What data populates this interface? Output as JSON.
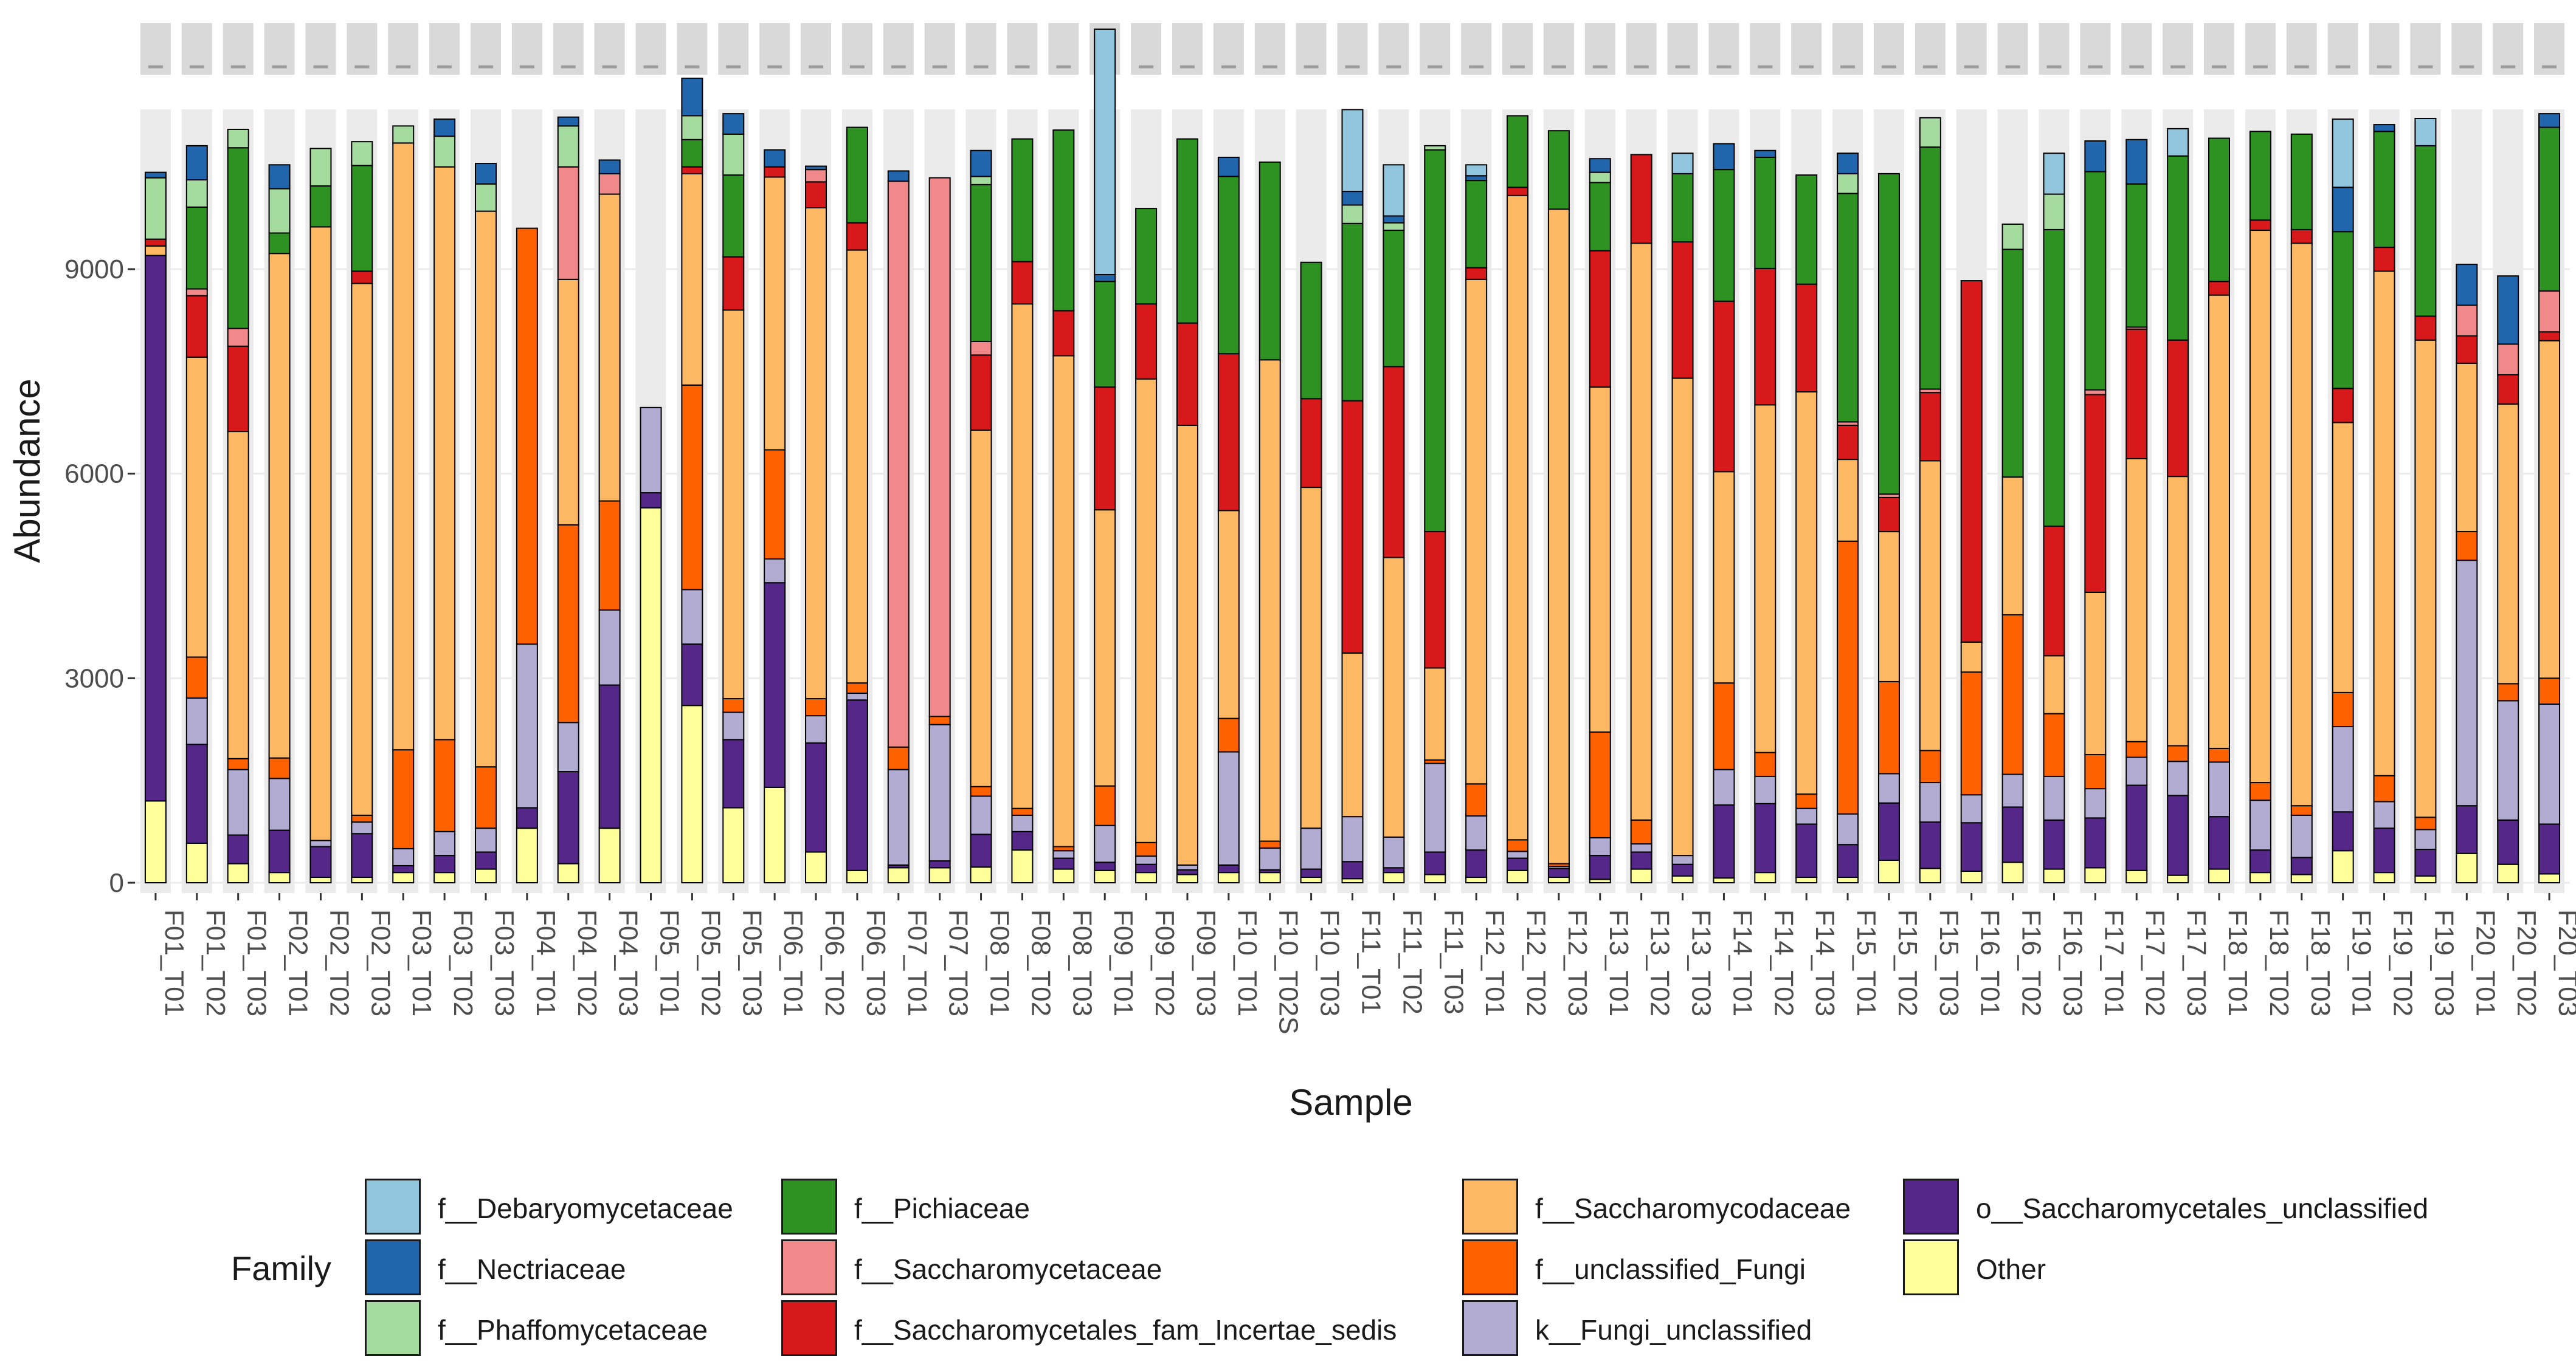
{
  "chart_data": {
    "type": "bar",
    "stacked": true,
    "xlabel": "Sample",
    "ylabel": "Abundance",
    "ylim": [
      0,
      11300
    ],
    "yticks": [
      0,
      3000,
      6000,
      9000
    ],
    "grid": true,
    "legend_title": "Family",
    "legend_position": "bottom",
    "categories": [
      "F01_T01",
      "F01_T02",
      "F01_T03",
      "F02_T01",
      "F02_T02",
      "F02_T03",
      "F03_T01",
      "F03_T02",
      "F03_T03",
      "F04_T01",
      "F04_T02",
      "F04_T03",
      "F05_T01",
      "F05_T02",
      "F05_T03",
      "F06_T01",
      "F06_T02",
      "F06_T03",
      "F07_T01",
      "F07_T03",
      "F08_T01",
      "F08_T02",
      "F08_T03",
      "F09_T01",
      "F09_T02",
      "F09_T03",
      "F10_T01",
      "F10_T02S",
      "F10_T03",
      "F11_T01",
      "F11_T02",
      "F11_T03",
      "F12_T01",
      "F12_T02",
      "F12_T03",
      "F13_T01",
      "F13_T02",
      "F13_T03",
      "F14_T01",
      "F14_T02",
      "F14_T03",
      "F15_T01",
      "F15_T02",
      "F15_T03",
      "F16_T01",
      "F16_T02",
      "F16_T03",
      "F17_T01",
      "F17_T02",
      "F17_T03",
      "F18_T01",
      "F18_T02",
      "F18_T03",
      "F19_T01",
      "F19_T02",
      "F19_T03",
      "F20_T01",
      "F20_T02",
      "F20_T03"
    ],
    "series": [
      {
        "name": "Other",
        "color": "#ffff99",
        "values": [
          1200,
          580,
          280,
          150,
          80,
          80,
          150,
          150,
          200,
          800,
          280,
          800,
          5500,
          2600,
          1100,
          1400,
          450,
          180,
          220,
          220,
          230,
          480,
          200,
          180,
          150,
          120,
          150,
          150,
          80,
          60,
          150,
          120,
          80,
          180,
          80,
          50,
          200,
          100,
          70,
          150,
          80,
          80,
          330,
          210,
          170,
          300,
          200,
          220,
          180,
          110,
          200,
          150,
          120,
          470,
          150,
          100,
          430,
          270,
          130
        ]
      },
      {
        "name": "o__Saccharomycetales_unclassified",
        "color": "#542788",
        "values": [
          8000,
          1450,
          420,
          620,
          450,
          640,
          100,
          250,
          250,
          300,
          1350,
          2100,
          220,
          900,
          1000,
          3000,
          1600,
          2500,
          40,
          100,
          480,
          270,
          160,
          120,
          120,
          70,
          110,
          40,
          120,
          250,
          70,
          330,
          400,
          180,
          130,
          350,
          250,
          170,
          1070,
          1010,
          780,
          480,
          840,
          680,
          710,
          810,
          720,
          730,
          1250,
          1170,
          770,
          330,
          250,
          570,
          650,
          390,
          700,
          650,
          730
        ]
      },
      {
        "name": "k__Fungi_unclassified",
        "color": "#b2abd2",
        "values": [
          0,
          680,
          960,
          760,
          90,
          170,
          250,
          350,
          350,
          2400,
          720,
          1100,
          1250,
          800,
          400,
          350,
          400,
          100,
          1400,
          2000,
          560,
          240,
          110,
          540,
          120,
          70,
          1660,
          320,
          600,
          660,
          450,
          1300,
          500,
          100,
          30,
          260,
          120,
          130,
          520,
          400,
          230,
          450,
          430,
          580,
          410,
          480,
          640,
          430,
          410,
          500,
          800,
          730,
          620,
          1250,
          390,
          290,
          3600,
          1750,
          1760
        ]
      },
      {
        "name": "f__unclassified_Fungi",
        "color": "#fe6100",
        "values": [
          0,
          600,
          160,
          300,
          0,
          100,
          1450,
          1350,
          900,
          6100,
          2900,
          1600,
          0,
          3000,
          200,
          1600,
          250,
          150,
          330,
          120,
          140,
          100,
          60,
          580,
          200,
          0,
          490,
          100,
          0,
          0,
          0,
          50,
          470,
          170,
          40,
          1550,
          350,
          0,
          1270,
          350,
          210,
          4000,
          1350,
          470,
          1800,
          2340,
          920,
          500,
          230,
          230,
          200,
          260,
          140,
          500,
          380,
          180,
          420,
          250,
          380
        ]
      },
      {
        "name": "f__Saccharomycodaceae",
        "color": "#fdb863",
        "values": [
          140,
          4400,
          4800,
          7400,
          9000,
          7800,
          8900,
          8400,
          8150,
          0,
          3600,
          4500,
          0,
          3100,
          5700,
          4000,
          7200,
          6350,
          0,
          0,
          5230,
          7400,
          7200,
          4050,
          6800,
          6450,
          3050,
          7060,
          5000,
          2400,
          4100,
          1350,
          7400,
          9450,
          9600,
          5060,
          8460,
          7000,
          3100,
          5100,
          5900,
          1200,
          2200,
          4250,
          440,
          2020,
          850,
          2380,
          4150,
          3950,
          6650,
          8100,
          8250,
          3960,
          7400,
          7000,
          2470,
          4100,
          4950
        ]
      },
      {
        "name": "f__Saccharomycetales_fam_Incertae_sedis",
        "color": "#d7191c",
        "values": [
          100,
          900,
          1250,
          0,
          0,
          180,
          0,
          0,
          0,
          0,
          0,
          0,
          0,
          100,
          780,
          150,
          380,
          400,
          0,
          0,
          1100,
          620,
          660,
          1800,
          1100,
          1500,
          2300,
          0,
          1300,
          3700,
          2800,
          2000,
          170,
          120,
          0,
          2000,
          1300,
          2000,
          2500,
          2000,
          1580,
          500,
          500,
          1000,
          5300,
          0,
          1900,
          2900,
          1900,
          2000,
          200,
          150,
          200,
          500,
          350,
          350,
          400,
          430,
          130
        ]
      },
      {
        "name": "f__Saccharomycetaceae",
        "color": "#f1898a",
        "values": [
          0,
          100,
          260,
          0,
          0,
          0,
          0,
          0,
          0,
          0,
          1650,
          300,
          0,
          0,
          0,
          0,
          180,
          0,
          8300,
          7900,
          200,
          0,
          0,
          0,
          0,
          0,
          0,
          0,
          0,
          0,
          0,
          0,
          0,
          0,
          0,
          0,
          0,
          0,
          0,
          0,
          0,
          50,
          50,
          50,
          0,
          0,
          0,
          70,
          30,
          0,
          0,
          0,
          0,
          0,
          0,
          0,
          450,
          450,
          600
        ]
      },
      {
        "name": "f__Pichiaceae",
        "color": "#2d9221",
        "values": [
          0,
          1200,
          2650,
          300,
          600,
          1550,
          0,
          0,
          0,
          0,
          0,
          0,
          0,
          400,
          1200,
          0,
          0,
          1400,
          0,
          0,
          2300,
          1800,
          2650,
          1550,
          1400,
          2700,
          2600,
          2900,
          2000,
          2600,
          2000,
          5600,
          1280,
          1050,
          1150,
          1000,
          0,
          1000,
          1930,
          1630,
          1600,
          3350,
          4700,
          3550,
          0,
          3340,
          4350,
          3200,
          2100,
          2700,
          2100,
          1300,
          1400,
          2300,
          1700,
          2500,
          0,
          0,
          2400
        ]
      },
      {
        "name": "f__Phaffomycetaceae",
        "color": "#a6dba0",
        "values": [
          900,
          400,
          270,
          650,
          550,
          350,
          250,
          450,
          400,
          0,
          600,
          0,
          0,
          350,
          600,
          0,
          0,
          0,
          0,
          0,
          120,
          0,
          0,
          0,
          0,
          0,
          0,
          0,
          0,
          270,
          110,
          60,
          0,
          0,
          0,
          150,
          0,
          0,
          0,
          0,
          0,
          290,
          0,
          430,
          0,
          370,
          520,
          0,
          0,
          0,
          0,
          0,
          0,
          0,
          0,
          0,
          0,
          0,
          0
        ]
      },
      {
        "name": "f__Nectriaceae",
        "color": "#2166ac",
        "values": [
          80,
          500,
          0,
          350,
          0,
          0,
          0,
          250,
          300,
          0,
          130,
          200,
          0,
          550,
          300,
          250,
          50,
          0,
          150,
          0,
          380,
          0,
          0,
          100,
          0,
          0,
          280,
          0,
          0,
          200,
          100,
          0,
          70,
          0,
          0,
          200,
          0,
          0,
          380,
          100,
          0,
          300,
          0,
          0,
          0,
          0,
          0,
          450,
          650,
          0,
          0,
          0,
          0,
          650,
          100,
          0,
          600,
          1000,
          200
        ]
      },
      {
        "name": "f__Debaryomycetaceae",
        "color": "#92c5de",
        "values": [
          0,
          0,
          0,
          0,
          0,
          0,
          0,
          0,
          0,
          0,
          0,
          0,
          0,
          0,
          0,
          0,
          0,
          0,
          0,
          0,
          0,
          0,
          0,
          3600,
          0,
          0,
          0,
          0,
          0,
          1200,
          750,
          0,
          160,
          0,
          0,
          0,
          0,
          300,
          0,
          0,
          0,
          0,
          0,
          0,
          0,
          0,
          600,
          0,
          0,
          400,
          0,
          0,
          0,
          1000,
          0,
          400,
          0,
          0,
          0
        ]
      }
    ]
  },
  "legend": {
    "title": "Family",
    "items": [
      {
        "label": "f__Debaryomycetaceae",
        "color": "#92c5de"
      },
      {
        "label": "f__Nectriaceae",
        "color": "#2166ac"
      },
      {
        "label": "f__Phaffomycetaceae",
        "color": "#a6dba0"
      },
      {
        "label": "f__Pichiaceae",
        "color": "#2d9221"
      },
      {
        "label": "f__Saccharomycetaceae",
        "color": "#f1898a"
      },
      {
        "label": "f__Saccharomycetales_fam_Incertae_sedis",
        "color": "#d7191c"
      },
      {
        "label": "f__Saccharomycodaceae",
        "color": "#fdb863"
      },
      {
        "label": "f__unclassified_Fungi",
        "color": "#fe6100"
      },
      {
        "label": "k__Fungi_unclassified",
        "color": "#b2abd2"
      },
      {
        "label": "o__Saccharomycetales_unclassified",
        "color": "#542788"
      },
      {
        "label": "Other",
        "color": "#ffff99"
      }
    ]
  }
}
